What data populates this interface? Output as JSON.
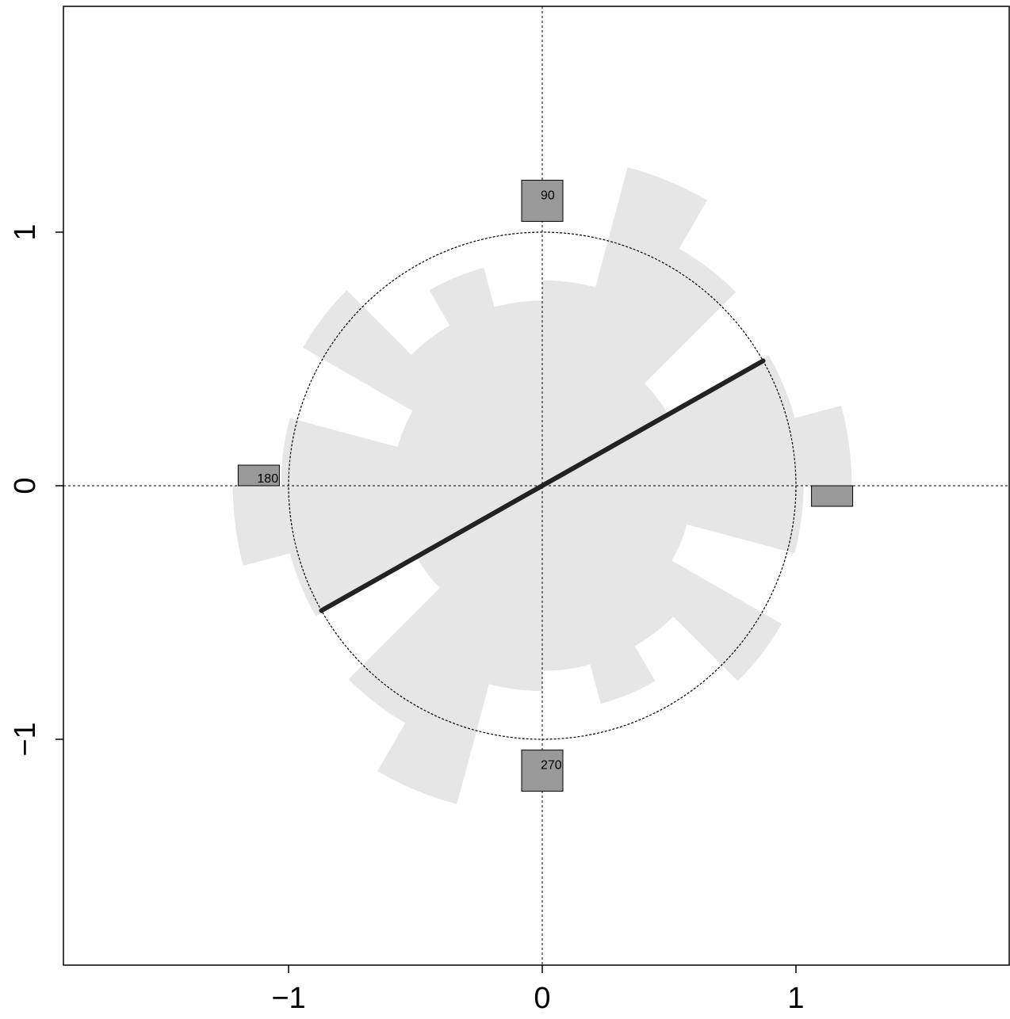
{
  "chart_data": {
    "type": "rose",
    "title": "",
    "xlabel": "",
    "ylabel": "",
    "xlim": [
      -1.89,
      1.89
    ],
    "ylim": [
      -1.89,
      1.89
    ],
    "x_ticks": [
      {
        "value": -1,
        "label": "−1"
      },
      {
        "value": 0,
        "label": "0"
      },
      {
        "value": 1,
        "label": "1"
      }
    ],
    "y_ticks": [
      {
        "value": -1,
        "label": "−1"
      },
      {
        "value": 0,
        "label": "0"
      },
      {
        "value": 1,
        "label": "1"
      }
    ],
    "bin_width_deg": 15,
    "bins": [
      {
        "angle_start": 0,
        "radius": 1.22
      },
      {
        "angle_start": 15,
        "radius": 1.03
      },
      {
        "angle_start": 30,
        "radius": 0.57
      },
      {
        "angle_start": 45,
        "radius": 1.08
      },
      {
        "angle_start": 60,
        "radius": 1.3
      },
      {
        "angle_start": 75,
        "radius": 0.81
      },
      {
        "angle_start": 90,
        "radius": 0.73
      },
      {
        "angle_start": 105,
        "radius": 0.89
      },
      {
        "angle_start": 120,
        "radius": 0.73
      },
      {
        "angle_start": 135,
        "radius": 1.09
      },
      {
        "angle_start": 150,
        "radius": 0.59
      },
      {
        "angle_start": 165,
        "radius": 1.03
      },
      {
        "angle_start": 180,
        "radius": 1.22
      },
      {
        "angle_start": 195,
        "radius": 1.03
      },
      {
        "angle_start": 210,
        "radius": 0.57
      },
      {
        "angle_start": 225,
        "radius": 1.08
      },
      {
        "angle_start": 240,
        "radius": 1.3
      },
      {
        "angle_start": 255,
        "radius": 0.81
      },
      {
        "angle_start": 270,
        "radius": 0.73
      },
      {
        "angle_start": 285,
        "radius": 0.89
      },
      {
        "angle_start": 300,
        "radius": 0.73
      },
      {
        "angle_start": 315,
        "radius": 1.09
      },
      {
        "angle_start": 330,
        "radius": 0.59
      },
      {
        "angle_start": 345,
        "radius": 1.03
      }
    ],
    "unit_circle_radius": 1,
    "mean_axis_angle_deg": 29.5,
    "mean_axis_length": 1,
    "direction_markers": [
      {
        "angle": 0,
        "label": ""
      },
      {
        "angle": 90,
        "label": "90"
      },
      {
        "angle": 180,
        "label": "180"
      },
      {
        "angle": 270,
        "label": "270"
      }
    ],
    "colors": {
      "petal": "#e6e6e6",
      "marker_fill": "#999999",
      "axis_line": "#222222",
      "frame": "#000000"
    }
  }
}
